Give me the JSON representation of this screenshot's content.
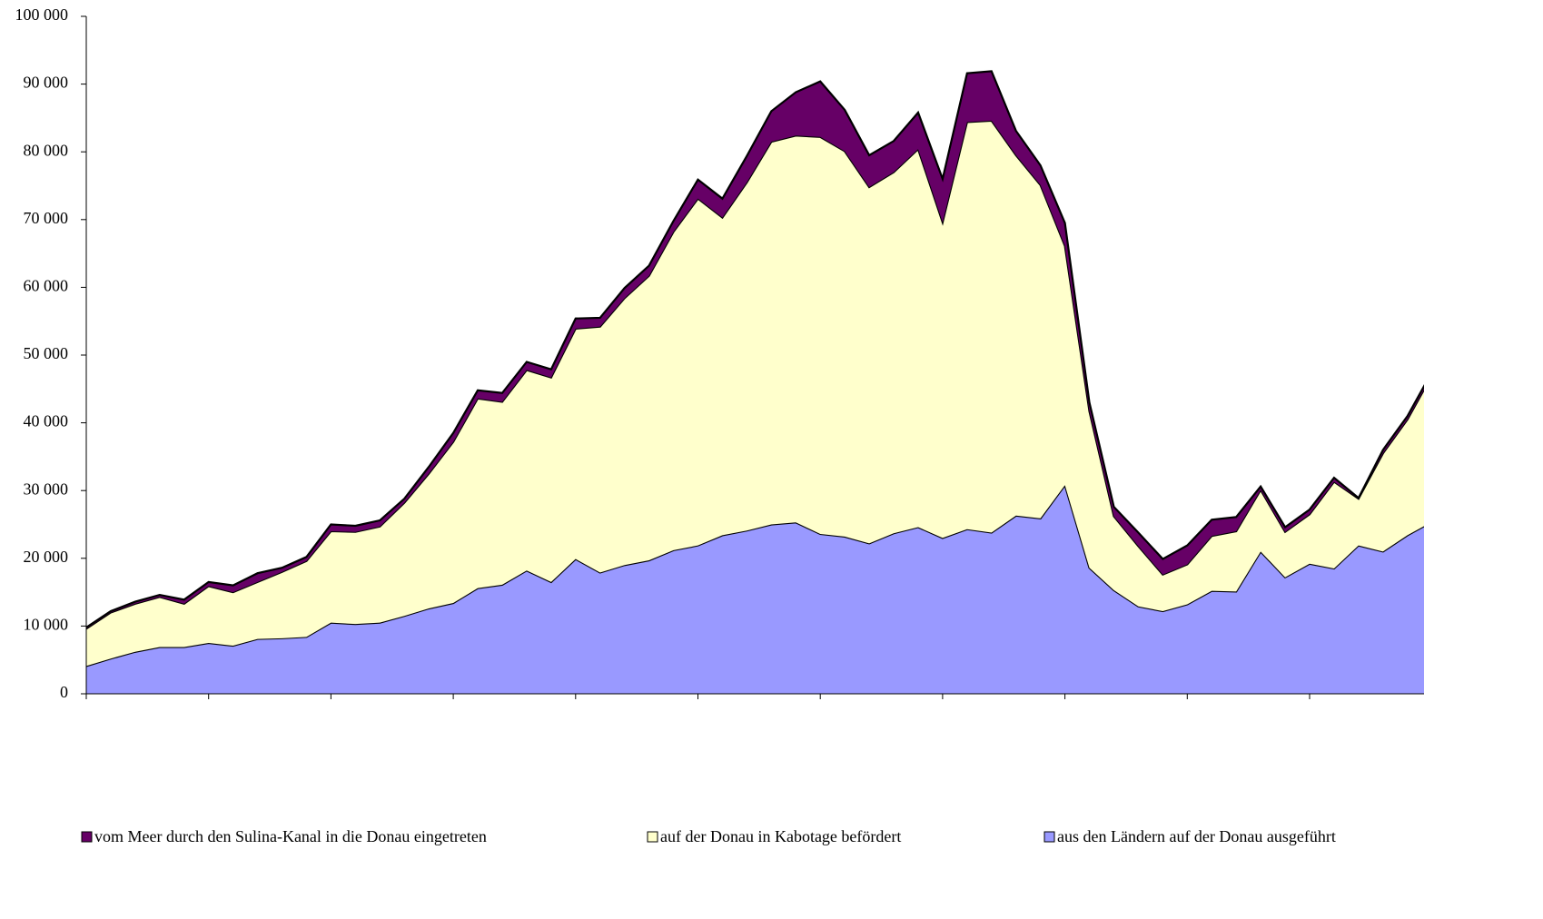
{
  "chart_data": {
    "type": "stacked_area",
    "categories": [
      null,
      null,
      null,
      null,
      null,
      null,
      null,
      null,
      null,
      null,
      null,
      null,
      null,
      null,
      null,
      null,
      null,
      null,
      null,
      null,
      null,
      null,
      null,
      null,
      null,
      null,
      null,
      null,
      null,
      null,
      null,
      null,
      null,
      null,
      null,
      null,
      null,
      null,
      null,
      null,
      null,
      null,
      null,
      null,
      null,
      null,
      null,
      null,
      null,
      null,
      null,
      null,
      null,
      null,
      null,
      null
    ],
    "series": [
      {
        "name": "aus den Ländern auf der Donau ausgeführt",
        "color": "#9999ff",
        "values": [
          4100,
          5200,
          6200,
          6900,
          6900,
          7500,
          7100,
          8100,
          8200,
          8400,
          10500,
          10300,
          10500,
          11500,
          12600,
          13400,
          15600,
          16100,
          18200,
          16500,
          19900,
          17900,
          19000,
          19700,
          21200,
          21900,
          23400,
          24100,
          25000,
          25300,
          23600,
          23200,
          22200,
          23700,
          24600,
          23000,
          24300,
          23800,
          26300,
          25900,
          30800,
          18600,
          15300,
          12900,
          12200,
          13200,
          15200,
          15100,
          21000,
          17200,
          19200,
          18500,
          21900,
          21000,
          23400,
          25400
        ]
      },
      {
        "name": "auf der Donau in Kabotage befördert",
        "color": "#ffffcc",
        "values": [
          5500,
          6800,
          7100,
          7400,
          6400,
          8400,
          7900,
          8400,
          9800,
          11200,
          13500,
          13600,
          14200,
          16700,
          19900,
          23800,
          28000,
          27000,
          29600,
          30200,
          34000,
          36300,
          39400,
          42000,
          47000,
          51200,
          46900,
          51400,
          56500,
          57100,
          58600,
          56900,
          52600,
          53300,
          55800,
          46600,
          60100,
          60800,
          53200,
          49200,
          35300,
          23100,
          10900,
          8900,
          5400,
          5900,
          8100,
          8900,
          9100,
          6700,
          7300,
          12800,
          6900,
          14500,
          17100,
          21600
        ]
      },
      {
        "name": "vom Meer durch den Sulina-Kanal in die Donau eingetreten",
        "color": "#660066",
        "values": [
          200,
          200,
          300,
          300,
          600,
          600,
          1000,
          1300,
          600,
          600,
          1000,
          900,
          900,
          600,
          1000,
          1300,
          1200,
          1300,
          1200,
          1200,
          1500,
          1300,
          1500,
          1500,
          1600,
          2800,
          2800,
          3900,
          4500,
          6400,
          8200,
          6100,
          4700,
          4600,
          5400,
          6400,
          7200,
          7300,
          3600,
          2900,
          3400,
          1300,
          1400,
          2000,
          2300,
          2800,
          2400,
          2100,
          500,
          700,
          700,
          600,
          100,
          500,
          500,
          500
        ]
      }
    ],
    "ylim": [
      0,
      100000
    ],
    "yticks": [
      0,
      {
        "value": 10000,
        "label": "10 000"
      },
      {
        "value": 20000,
        "label": "20 000"
      },
      {
        "value": 30000,
        "label": "30 000"
      },
      {
        "value": 40000,
        "label": "40 000"
      },
      {
        "value": 50000,
        "label": "50 000"
      },
      {
        "value": 60000,
        "label": "60 000"
      },
      {
        "value": 70000,
        "label": "70 000"
      },
      {
        "value": 80000,
        "label": "80 000"
      },
      {
        "value": 90000,
        "label": "90 000"
      },
      {
        "value": 100000,
        "label": "100 000"
      }
    ],
    "legend": "bottom",
    "grid": false
  }
}
